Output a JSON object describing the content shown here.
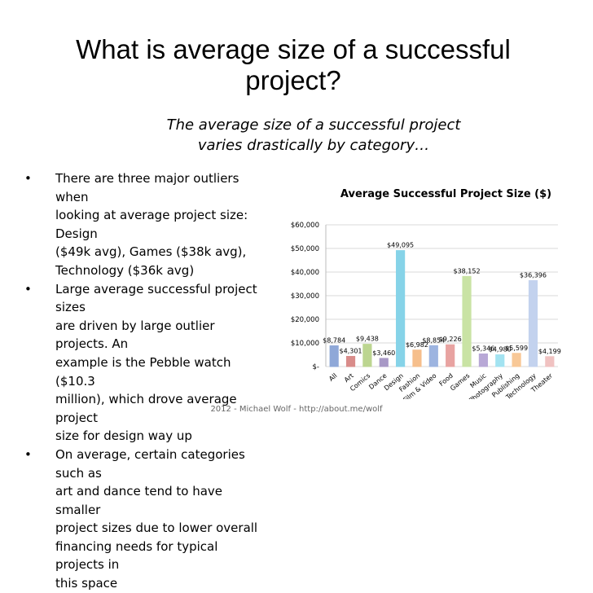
{
  "slide": {
    "title_line1": "What is average size of a successful",
    "title_line2": "project?",
    "subtitle_line1": "The average size of a successful project",
    "subtitle_line2": "varies drastically by category…",
    "bullets": [
      {
        "lines": [
          "There are three major outliers when",
          "looking at average project size: Design",
          "($49k avg), Games ($38k avg),",
          "Technology ($36k avg)"
        ]
      },
      {
        "lines": [
          "Large average successful project sizes",
          "are driven by large outlier projects. An",
          "example is the Pebble watch ($10.3",
          "million), which drove average project",
          "size for design way up"
        ]
      },
      {
        "lines": [
          "On average, certain categories such as",
          "art and dance tend to have smaller",
          "project sizes due to lower overall",
          "financing needs for typical projects in",
          "this space"
        ]
      }
    ],
    "bullet_symbol": "•",
    "footer": "2012 - Michael Wolf - http://about.me/wolf"
  },
  "chart_data": {
    "type": "bar",
    "title": "Average Successful Project Size ($)",
    "categories": [
      "All",
      "Art",
      "Comics",
      "Dance",
      "Design",
      "Fashion",
      "Film & Video",
      "Food",
      "Games",
      "Music",
      "Photography",
      "Publishing",
      "Technology",
      "Theater"
    ],
    "values": [
      8784,
      4301,
      9438,
      3460,
      49095,
      6982,
      8854,
      9226,
      38152,
      5346,
      4980,
      5599,
      36396,
      4199
    ],
    "data_labels": [
      "$8,784",
      "$4,301",
      "$9,438",
      "$3,460",
      "$49,095",
      "$6,982",
      "$8,854",
      "$9,226",
      "$38,152",
      "$5,346",
      "$4,980",
      "$5,599",
      "$36,396",
      "$4,199"
    ],
    "colors": [
      "#8fa8d8",
      "#d98c8a",
      "#bcd590",
      "#a899c6",
      "#86d3e8",
      "#f6bf8c",
      "#9db4e0",
      "#e8a3a1",
      "#c9e3a4",
      "#b8a8d6",
      "#a3e3f1",
      "#f8c897",
      "#c3d2ee",
      "#f0c2c1"
    ],
    "ylim": [
      0,
      60000
    ],
    "yticks": [
      0,
      10000,
      20000,
      30000,
      40000,
      50000,
      60000
    ],
    "ytick_labels": [
      "$-",
      "$10,000",
      "$20,000",
      "$30,000",
      "$40,000",
      "$50,000",
      "$60,000"
    ],
    "grid": true,
    "legend": "none"
  }
}
